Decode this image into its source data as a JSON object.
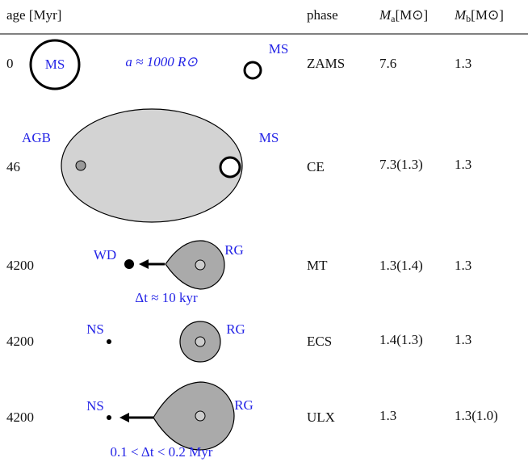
{
  "header": {
    "age": "age [Myr]",
    "phase": "phase",
    "mass_a": {
      "symbol": "M",
      "subscript": "a",
      "unit": "[M⊙]"
    },
    "mass_b": {
      "symbol": "M",
      "subscript": "b",
      "unit": "[M⊙]"
    }
  },
  "rows": [
    {
      "age": "0",
      "phase": "ZAMS",
      "mass_a": "7.6",
      "mass_b": "1.3",
      "labels": {
        "star_a": "MS",
        "separation": "a ≈ 1000 R⊙",
        "star_b": "MS"
      }
    },
    {
      "age": "46",
      "phase": "CE",
      "mass_a": "7.3(1.3)",
      "mass_b": "1.3",
      "labels": {
        "star_a": "AGB",
        "star_b": "MS"
      }
    },
    {
      "age": "4200",
      "phase": "MT",
      "mass_a": "1.3(1.4)",
      "mass_b": "1.3",
      "labels": {
        "star_a": "WD",
        "star_b": "RG",
        "duration": "Δt ≈ 10 kyr"
      }
    },
    {
      "age": "4200",
      "phase": "ECS",
      "mass_a": "1.4(1.3)",
      "mass_b": "1.3",
      "labels": {
        "star_a": "NS",
        "star_b": "RG"
      }
    },
    {
      "age": "4200",
      "phase": "ULX",
      "mass_a": "1.3",
      "mass_b": "1.3(1.0)",
      "labels": {
        "star_a": "NS",
        "star_b": "RG",
        "duration": "0.1 < Δt < 0.2 Myr"
      }
    }
  ]
}
